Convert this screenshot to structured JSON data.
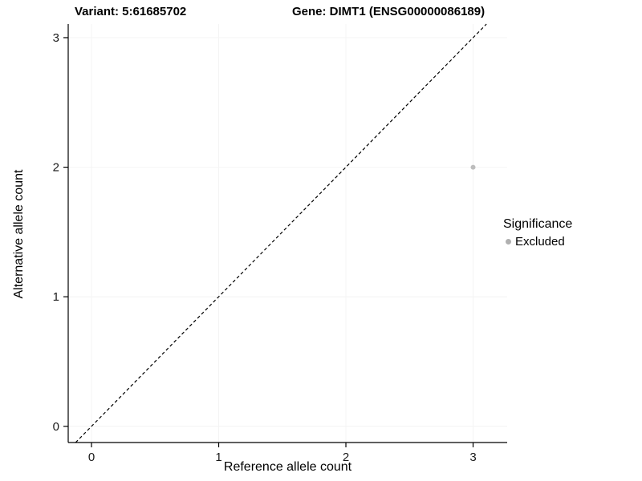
{
  "chart_data": {
    "type": "scatter",
    "title_left": "Variant: 5:61685702",
    "title_right": "Gene: DIMT1 (ENSG00000086189)",
    "xlabel": "Reference allele count",
    "ylabel": "Alternative allele count",
    "xlim": [
      -0.183,
      3.268
    ],
    "ylim": [
      -0.125,
      3.105
    ],
    "xticks": [
      "0",
      "1",
      "2",
      "3"
    ],
    "yticks": [
      "0",
      "1",
      "2",
      "3"
    ],
    "grid": "very-faint",
    "reference_line": {
      "style": "dashed",
      "equation": "y = x",
      "color": "#000000"
    },
    "series": [
      {
        "name": "Excluded",
        "color": "#bdbdbd",
        "point_radius": 3,
        "points": [
          {
            "x": 3,
            "y": 2
          }
        ]
      }
    ],
    "legend": {
      "title": "Significance",
      "position": "right",
      "entries": [
        {
          "label": "Excluded",
          "color": "#b0b0b0"
        }
      ]
    },
    "colors": {
      "axis": "#000000",
      "grid": "#f4f4f4",
      "background": "#ffffff"
    }
  }
}
